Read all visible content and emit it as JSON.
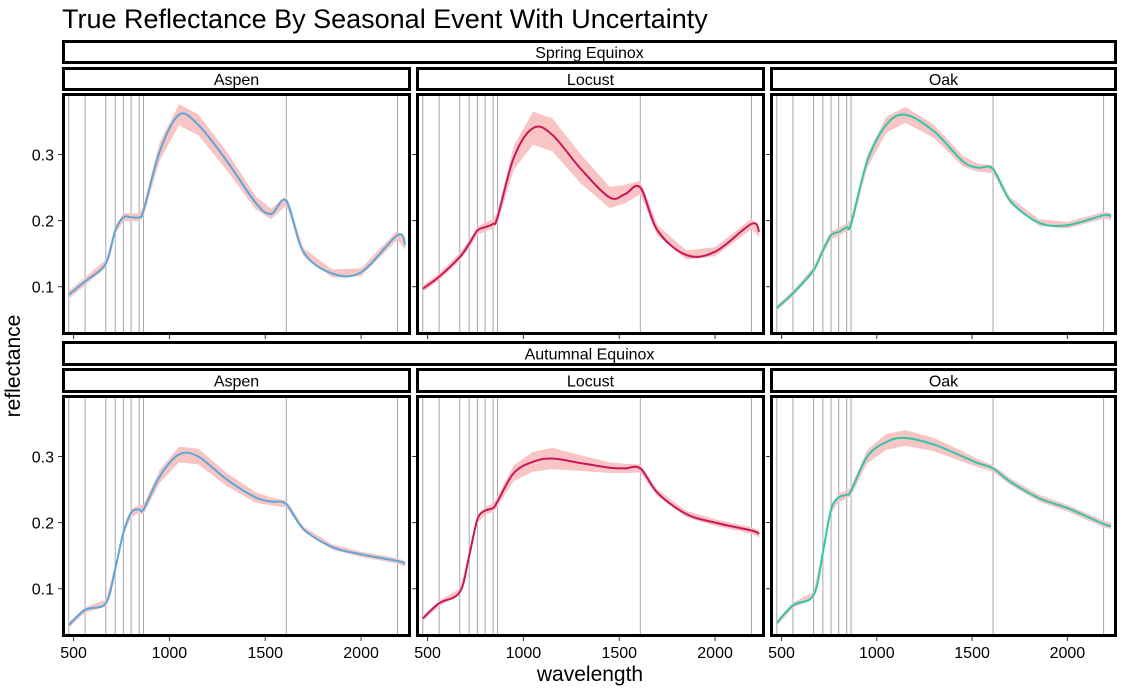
{
  "chart_data": {
    "type": "line",
    "title": "True Reflectance By Seasonal Event With Uncertainty",
    "xlabel": "wavelength",
    "ylabel": "reflectance",
    "xlim": [
      450,
      2250
    ],
    "ylim": [
      0.03,
      0.39
    ],
    "x_ticks": [
      500,
      1000,
      1500,
      2000
    ],
    "y_ticks": [
      0.1,
      0.2,
      0.3
    ],
    "vlines": [
      475,
      560,
      668,
      717,
      760,
      800,
      842,
      865,
      1610,
      2190
    ],
    "grid": false,
    "legend": "none",
    "rows": [
      "Spring Equinox",
      "Autumnal Equinox"
    ],
    "columns": [
      "Aspen",
      "Locust",
      "Oak"
    ],
    "colors": {
      "Aspen": "#5ba8d8",
      "Locust": "#c8185a",
      "Oak": "#2ec7a9",
      "ribbon": "#f9c4c4"
    },
    "panels": [
      {
        "season": "Spring Equinox",
        "species": "Aspen",
        "x": [
          475,
          560,
          668,
          717,
          760,
          800,
          842,
          865,
          950,
          1050,
          1150,
          1300,
          1450,
          1530,
          1610,
          1700,
          1850,
          2000,
          2190,
          2230
        ],
        "y": [
          0.088,
          0.108,
          0.135,
          0.185,
          0.205,
          0.205,
          0.205,
          0.215,
          0.305,
          0.36,
          0.345,
          0.29,
          0.227,
          0.21,
          0.23,
          0.152,
          0.12,
          0.122,
          0.178,
          0.163
        ],
        "band": [
          0.006,
          0.006,
          0.006,
          0.006,
          0.006,
          0.006,
          0.006,
          0.008,
          0.014,
          0.016,
          0.016,
          0.014,
          0.01,
          0.008,
          0.007,
          0.006,
          0.006,
          0.006,
          0.007,
          0.007
        ]
      },
      {
        "season": "Spring Equinox",
        "species": "Locust",
        "x": [
          475,
          560,
          668,
          717,
          760,
          800,
          842,
          865,
          950,
          1050,
          1150,
          1300,
          1450,
          1530,
          1610,
          1700,
          1850,
          2000,
          2190,
          2230
        ],
        "y": [
          0.097,
          0.115,
          0.145,
          0.165,
          0.185,
          0.19,
          0.195,
          0.205,
          0.295,
          0.34,
          0.33,
          0.278,
          0.235,
          0.24,
          0.25,
          0.185,
          0.148,
          0.153,
          0.195,
          0.183
        ],
        "band": [
          0.005,
          0.005,
          0.006,
          0.006,
          0.006,
          0.007,
          0.007,
          0.009,
          0.018,
          0.025,
          0.025,
          0.022,
          0.016,
          0.014,
          0.01,
          0.008,
          0.007,
          0.007,
          0.008,
          0.008
        ]
      },
      {
        "season": "Spring Equinox",
        "species": "Oak",
        "x": [
          475,
          560,
          668,
          717,
          760,
          800,
          842,
          865,
          950,
          1050,
          1150,
          1300,
          1450,
          1530,
          1610,
          1700,
          1850,
          2000,
          2190,
          2230
        ],
        "y": [
          0.068,
          0.09,
          0.125,
          0.155,
          0.178,
          0.183,
          0.19,
          0.195,
          0.29,
          0.345,
          0.36,
          0.335,
          0.29,
          0.28,
          0.278,
          0.23,
          0.197,
          0.193,
          0.208,
          0.206
        ],
        "band": [
          0.004,
          0.004,
          0.005,
          0.005,
          0.006,
          0.006,
          0.006,
          0.008,
          0.01,
          0.012,
          0.012,
          0.01,
          0.008,
          0.006,
          0.006,
          0.005,
          0.005,
          0.005,
          0.005,
          0.005
        ]
      },
      {
        "season": "Autumnal Equinox",
        "species": "Aspen",
        "x": [
          475,
          560,
          668,
          717,
          760,
          800,
          842,
          865,
          950,
          1050,
          1150,
          1300,
          1450,
          1530,
          1610,
          1700,
          1850,
          2000,
          2190,
          2230
        ],
        "y": [
          0.045,
          0.068,
          0.078,
          0.13,
          0.185,
          0.215,
          0.22,
          0.22,
          0.27,
          0.303,
          0.3,
          0.265,
          0.238,
          0.232,
          0.228,
          0.19,
          0.163,
          0.152,
          0.142,
          0.138
        ],
        "band": [
          0.004,
          0.004,
          0.005,
          0.005,
          0.006,
          0.006,
          0.006,
          0.007,
          0.01,
          0.012,
          0.012,
          0.01,
          0.008,
          0.006,
          0.005,
          0.004,
          0.004,
          0.004,
          0.004,
          0.004
        ]
      },
      {
        "season": "Autumnal Equinox",
        "species": "Locust",
        "x": [
          475,
          560,
          668,
          717,
          760,
          800,
          842,
          865,
          950,
          1050,
          1150,
          1300,
          1450,
          1530,
          1610,
          1700,
          1850,
          2000,
          2190,
          2230
        ],
        "y": [
          0.055,
          0.078,
          0.095,
          0.15,
          0.205,
          0.218,
          0.222,
          0.232,
          0.275,
          0.292,
          0.297,
          0.29,
          0.283,
          0.282,
          0.282,
          0.245,
          0.213,
          0.2,
          0.188,
          0.183
        ],
        "band": [
          0.004,
          0.004,
          0.005,
          0.005,
          0.006,
          0.006,
          0.006,
          0.007,
          0.012,
          0.015,
          0.016,
          0.012,
          0.008,
          0.007,
          0.006,
          0.005,
          0.005,
          0.005,
          0.005,
          0.005
        ]
      },
      {
        "season": "Autumnal Equinox",
        "species": "Oak",
        "x": [
          475,
          560,
          668,
          717,
          760,
          800,
          842,
          865,
          950,
          1050,
          1150,
          1300,
          1450,
          1530,
          1610,
          1700,
          1850,
          2000,
          2190,
          2230
        ],
        "y": [
          0.048,
          0.075,
          0.09,
          0.155,
          0.22,
          0.238,
          0.242,
          0.248,
          0.3,
          0.322,
          0.328,
          0.318,
          0.3,
          0.29,
          0.282,
          0.262,
          0.237,
          0.222,
          0.198,
          0.195
        ],
        "band": [
          0.004,
          0.004,
          0.005,
          0.005,
          0.006,
          0.006,
          0.006,
          0.007,
          0.01,
          0.012,
          0.012,
          0.01,
          0.008,
          0.006,
          0.005,
          0.005,
          0.005,
          0.005,
          0.005,
          0.005
        ]
      }
    ]
  }
}
